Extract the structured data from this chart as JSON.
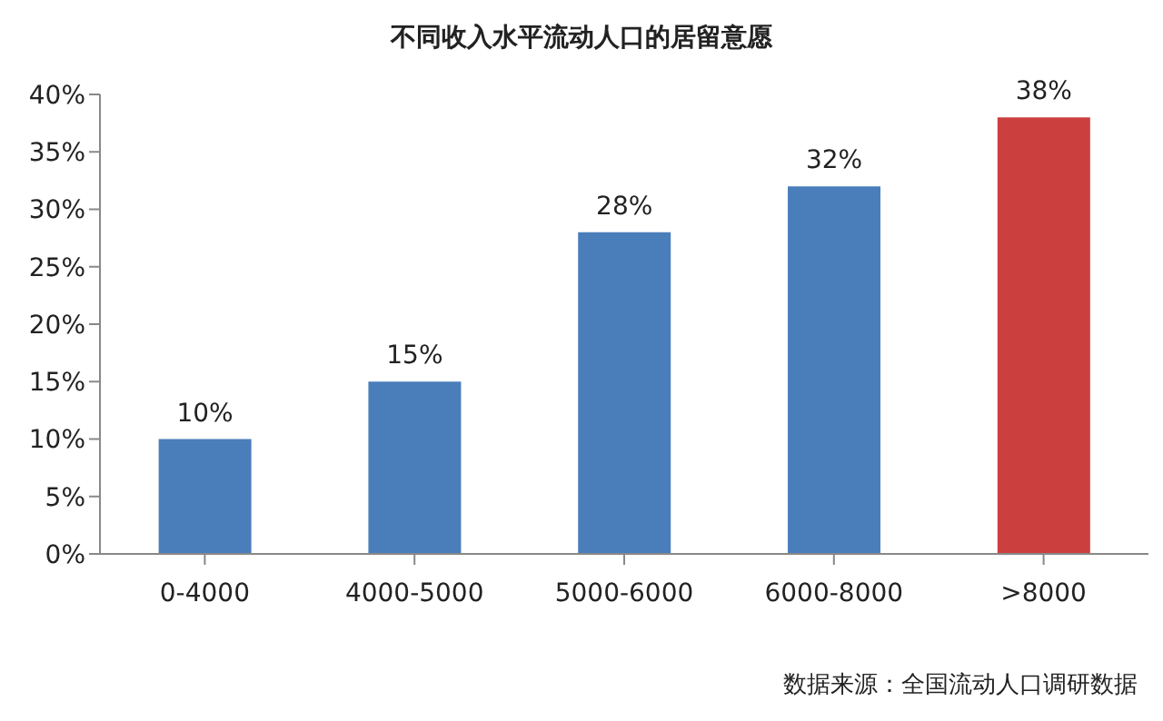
{
  "chart_data": {
    "type": "bar",
    "title": "不同收入水平流动人口的居留意愿",
    "categories": [
      "0-4000",
      "4000-5000",
      "5000-6000",
      "6000-8000",
      ">8000"
    ],
    "values": [
      10,
      15,
      28,
      32,
      38
    ],
    "colors": [
      "#4a7ebb",
      "#4a7ebb",
      "#4a7ebb",
      "#4a7ebb",
      "#cc3f3f"
    ],
    "value_labels": [
      "10%",
      "15%",
      "28%",
      "32%",
      "38%"
    ],
    "ylim": [
      0,
      40
    ],
    "yticks": [
      {
        "value": 0,
        "label": "0%"
      },
      {
        "value": 5,
        "label": "5%"
      },
      {
        "value": 10,
        "label": "10%"
      },
      {
        "value": 15,
        "label": "15%"
      },
      {
        "value": 20,
        "label": "20%"
      },
      {
        "value": 25,
        "label": "25%"
      },
      {
        "value": 30,
        "label": "30%"
      },
      {
        "value": 35,
        "label": "35%"
      },
      {
        "value": 40,
        "label": "40%"
      }
    ],
    "grid": false,
    "legend": false,
    "annotations": [
      "数据来源：全国流动人口调研数据"
    ]
  }
}
